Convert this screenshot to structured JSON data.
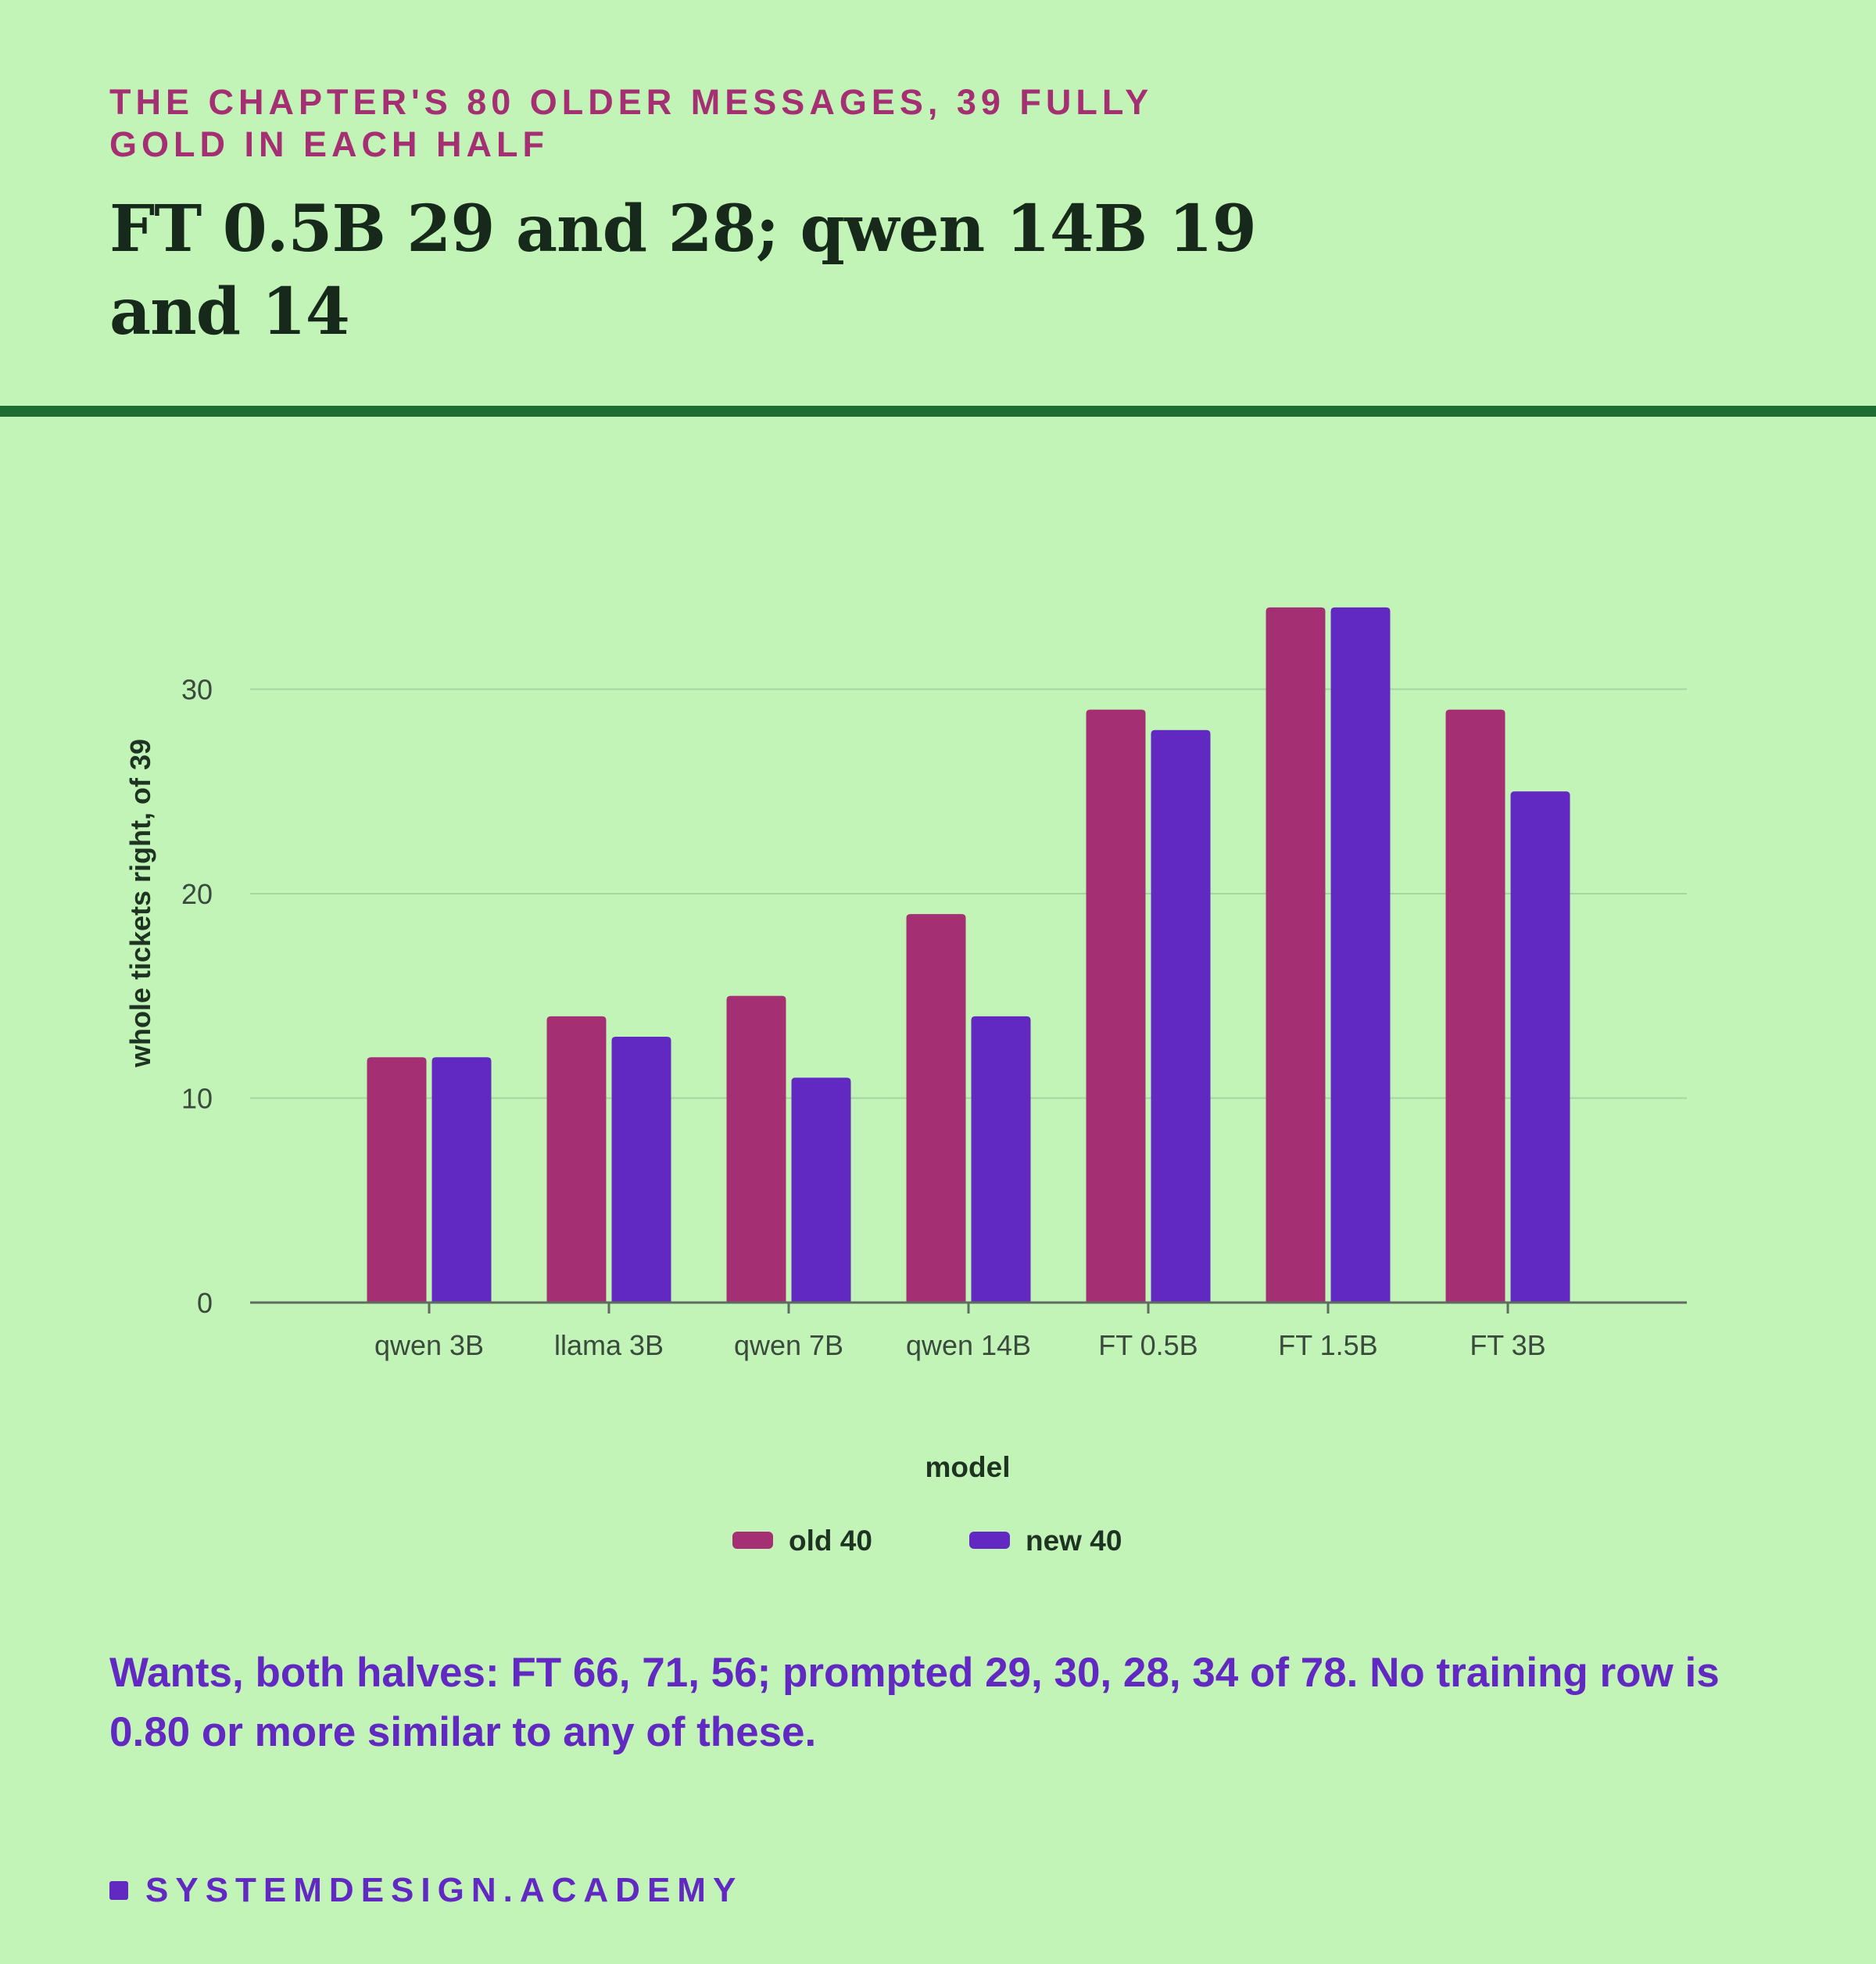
{
  "header": {
    "kicker": "THE CHAPTER'S 80 OLDER MESSAGES, 39 FULLY GOLD IN EACH HALF",
    "title": "FT 0.5B 29 and 28; qwen 14B 19 and 14"
  },
  "chart_data": {
    "type": "bar",
    "categories": [
      "qwen 3B",
      "llama 3B",
      "qwen 7B",
      "qwen 14B",
      "FT 0.5B",
      "FT 1.5B",
      "FT 3B"
    ],
    "series": [
      {
        "name": "old 40",
        "color": "#a52f73",
        "values": [
          12,
          14,
          15,
          19,
          29,
          34,
          29
        ]
      },
      {
        "name": "new 40",
        "color": "#6128c2",
        "values": [
          12,
          13,
          11,
          14,
          28,
          34,
          25
        ]
      }
    ],
    "xlabel": "model",
    "ylabel": "whole tickets right, of 39",
    "ylim": [
      0,
      36
    ],
    "yticks": [
      0,
      10,
      20,
      30
    ],
    "grid": true,
    "legend": "bottom-center"
  },
  "footnote": "Wants, both halves: FT 66, 71, 56; prompted 29, 30, 28, 34 of 78. No training row is 0.80 or more similar to any of these.",
  "brand": "SYSTEMDESIGN.ACADEMY"
}
